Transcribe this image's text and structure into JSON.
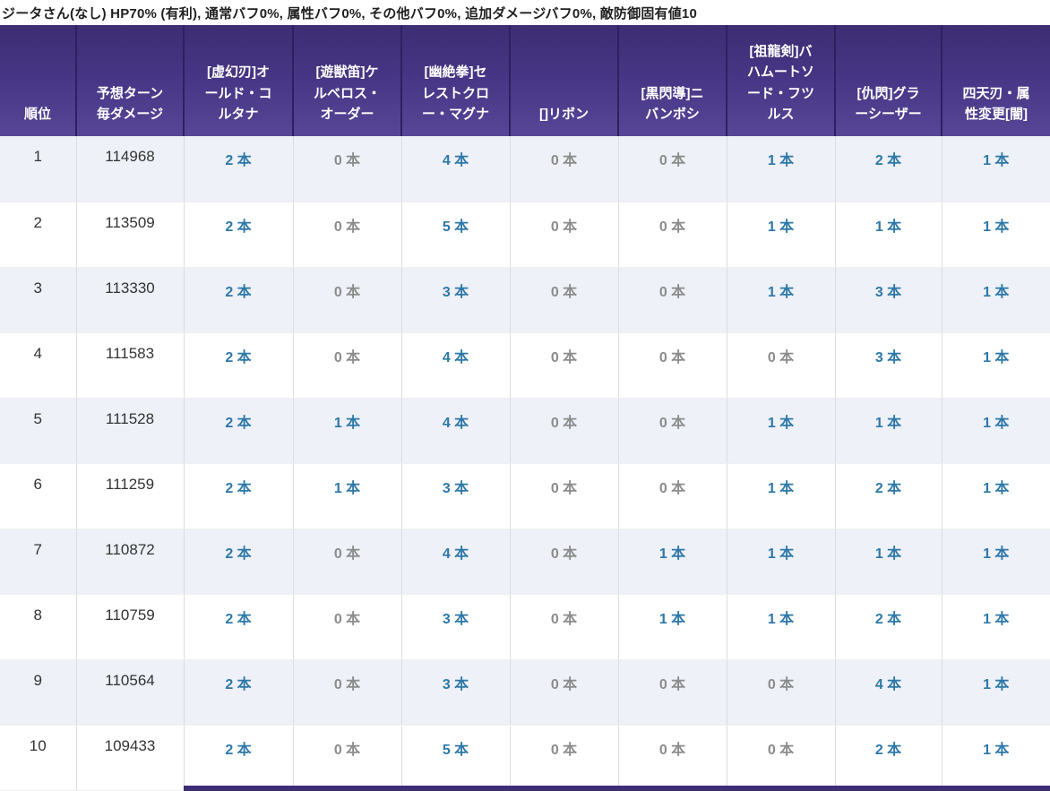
{
  "summary": {
    "text": "ジータさん(なし) HP70% (有利), 通常バフ0%, 属性バフ0%, その他バフ0%, 追加ダメージバフ0%, 敵防御固有値10"
  },
  "table": {
    "columns": [
      {
        "label": "順位"
      },
      {
        "label": "予想ターン毎ダメージ"
      },
      {
        "label": "[虚幻刃]オールド・コルタナ"
      },
      {
        "label": "[遊獣笛]ケルベロス・オーダー"
      },
      {
        "label": "[幽絶拳]セレストクロー・マグナ"
      },
      {
        "label": "[]リボン"
      },
      {
        "label": "[黒閃導]ニバンボシ"
      },
      {
        "label": "[祖龍剣]バハムートソード・フツルス"
      },
      {
        "label": "[仇閃]グラーシーザー"
      },
      {
        "label": "四天刃・属性変更[闇]"
      }
    ],
    "unit_suffix": "本",
    "rows": [
      {
        "rank": "1",
        "damage": "114968",
        "counts": [
          2,
          0,
          4,
          0,
          0,
          1,
          2,
          1
        ]
      },
      {
        "rank": "2",
        "damage": "113509",
        "counts": [
          2,
          0,
          5,
          0,
          0,
          1,
          1,
          1
        ]
      },
      {
        "rank": "3",
        "damage": "113330",
        "counts": [
          2,
          0,
          3,
          0,
          0,
          1,
          3,
          1
        ]
      },
      {
        "rank": "4",
        "damage": "111583",
        "counts": [
          2,
          0,
          4,
          0,
          0,
          0,
          3,
          1
        ]
      },
      {
        "rank": "5",
        "damage": "111528",
        "counts": [
          2,
          1,
          4,
          0,
          0,
          1,
          1,
          1
        ]
      },
      {
        "rank": "6",
        "damage": "111259",
        "counts": [
          2,
          1,
          3,
          0,
          0,
          1,
          2,
          1
        ]
      },
      {
        "rank": "7",
        "damage": "110872",
        "counts": [
          2,
          0,
          4,
          0,
          1,
          1,
          1,
          1
        ]
      },
      {
        "rank": "8",
        "damage": "110759",
        "counts": [
          2,
          0,
          3,
          0,
          1,
          1,
          2,
          1
        ]
      },
      {
        "rank": "9",
        "damage": "110564",
        "counts": [
          2,
          0,
          3,
          0,
          0,
          0,
          4,
          1
        ]
      },
      {
        "rank": "10",
        "damage": "109433",
        "counts": [
          2,
          0,
          5,
          0,
          0,
          0,
          2,
          1
        ]
      }
    ]
  },
  "colors": {
    "header_gradient_top": "#3d2d73",
    "header_gradient_bottom": "#574697",
    "header_text": "#ffffff",
    "row_alt_background": "#eef1f8",
    "row_background": "#ffffff",
    "body_text": "#333333",
    "count_positive": "#2e78a8",
    "count_zero": "#8c8c8c"
  }
}
